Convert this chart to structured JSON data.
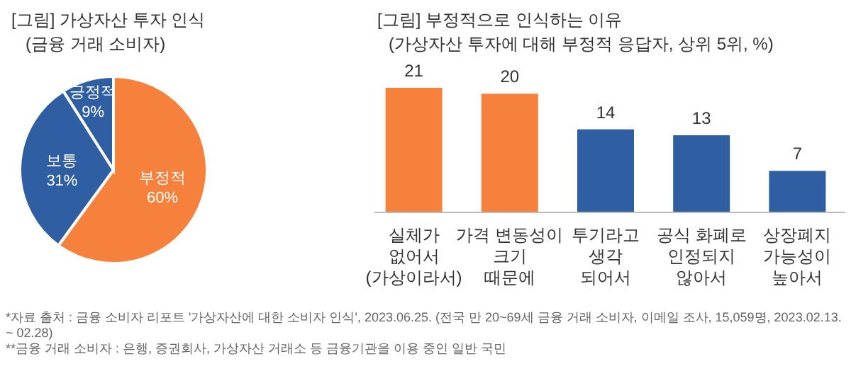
{
  "chart_data": [
    {
      "type": "pie",
      "title": "[그림] 가상자산 투자 인식",
      "subtitle": "(금융 거래 소비자)",
      "categories": [
        "부정적",
        "보통",
        "긍정적"
      ],
      "values": [
        60,
        31,
        9
      ],
      "colors": [
        "#f5813c",
        "#2f5fa2",
        "#2f5fa2"
      ],
      "value_labels": [
        "60%",
        "31%",
        "9%"
      ]
    },
    {
      "type": "bar",
      "title": "[그림] 부정적으로 인식하는 이유",
      "subtitle": "(가상자산 투자에 대해 부정적 응답자, 상위 5위, %)",
      "categories": [
        "실체가\n없어서\n(가상이라서)",
        "가격 변동성이\n크기\n때문에",
        "투기라고\n생각\n되어서",
        "공식 화폐로\n인정되지\n않아서",
        "상장폐지\n가능성이\n높아서"
      ],
      "values": [
        21,
        20,
        14,
        13,
        7
      ],
      "colors": [
        "#f5813c",
        "#f5813c",
        "#2f5fa2",
        "#2f5fa2",
        "#2f5fa2"
      ],
      "data_labels": true,
      "annotations": [
        "*자료 출처 : 금융 소비자 리포트 '가상자산에 대한 소비자 인식', 2023.06.25. (전국 만 20~69세 금융 거래 소비자, 이메일 조사, 15,059명, 2023.02.13. ~ 02.28)",
        "**금융 거래 소비자 : 은행, 증권회사, 가상자산 거래소 등 금융기관을 이용 중인 일반 국민"
      ]
    }
  ]
}
